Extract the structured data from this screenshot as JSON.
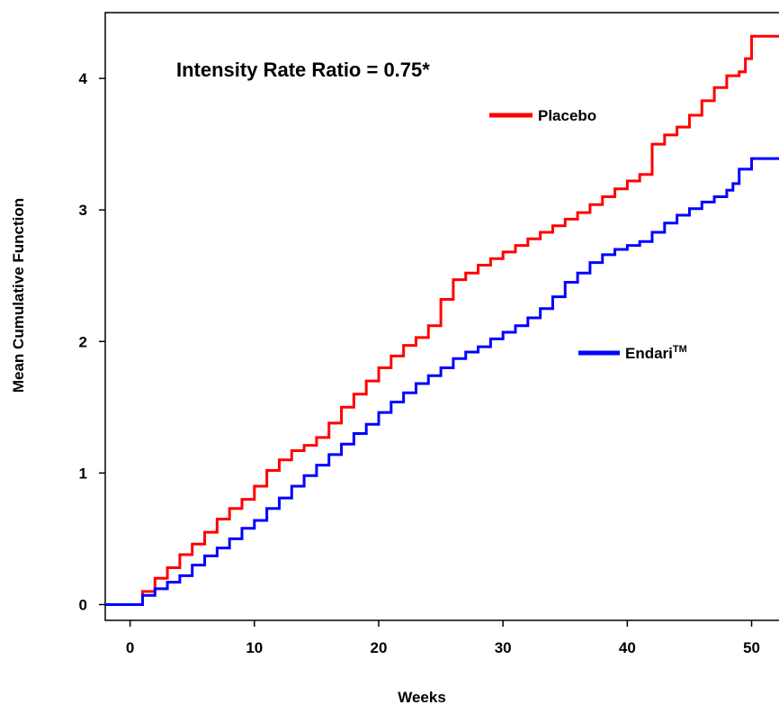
{
  "chart_data": {
    "type": "line",
    "annotation": "Intensity Rate Ratio = 0.75*",
    "xlabel": "Weeks",
    "ylabel": "Mean Cumulative Function",
    "xlim": [
      -2,
      53
    ],
    "ylim": [
      -0.12,
      4.5
    ],
    "x_ticks": [
      0,
      10,
      20,
      30,
      40,
      50
    ],
    "x_tick_labels": [
      "0",
      "10",
      "20",
      "30",
      "40",
      "50"
    ],
    "y_ticks": [
      0,
      1,
      2,
      3,
      4
    ],
    "y_tick_labels": [
      "0",
      "1",
      "2",
      "3",
      "4"
    ],
    "grid": false,
    "series": [
      {
        "name": "Placebo",
        "color": "#ff0000",
        "step": true,
        "points": [
          [
            -2,
            0
          ],
          [
            0,
            0
          ],
          [
            1,
            0.1
          ],
          [
            2,
            0.2
          ],
          [
            3,
            0.28
          ],
          [
            4,
            0.38
          ],
          [
            5,
            0.46
          ],
          [
            6,
            0.55
          ],
          [
            7,
            0.65
          ],
          [
            8,
            0.73
          ],
          [
            9,
            0.8
          ],
          [
            10,
            0.9
          ],
          [
            11,
            1.02
          ],
          [
            12,
            1.1
          ],
          [
            13,
            1.17
          ],
          [
            14,
            1.21
          ],
          [
            15,
            1.27
          ],
          [
            16,
            1.38
          ],
          [
            17,
            1.5
          ],
          [
            18,
            1.6
          ],
          [
            19,
            1.7
          ],
          [
            20,
            1.8
          ],
          [
            21,
            1.89
          ],
          [
            22,
            1.97
          ],
          [
            23,
            2.03
          ],
          [
            24,
            2.12
          ],
          [
            25,
            2.32
          ],
          [
            26,
            2.47
          ],
          [
            27,
            2.52
          ],
          [
            28,
            2.58
          ],
          [
            29,
            2.63
          ],
          [
            30,
            2.68
          ],
          [
            31,
            2.73
          ],
          [
            32,
            2.78
          ],
          [
            33,
            2.83
          ],
          [
            34,
            2.88
          ],
          [
            35,
            2.93
          ],
          [
            36,
            2.98
          ],
          [
            37,
            3.04
          ],
          [
            38,
            3.1
          ],
          [
            39,
            3.16
          ],
          [
            40,
            3.22
          ],
          [
            41,
            3.27
          ],
          [
            42,
            3.5
          ],
          [
            43,
            3.57
          ],
          [
            44,
            3.63
          ],
          [
            45,
            3.72
          ],
          [
            46,
            3.83
          ],
          [
            47,
            3.93
          ],
          [
            48,
            4.02
          ],
          [
            49,
            4.05
          ],
          [
            49.5,
            4.15
          ],
          [
            50,
            4.32
          ],
          [
            53,
            4.32
          ]
        ]
      },
      {
        "name": "Endari™",
        "color": "#0000ff",
        "step": true,
        "points": [
          [
            -2,
            0
          ],
          [
            0,
            0
          ],
          [
            1,
            0.07
          ],
          [
            2,
            0.12
          ],
          [
            3,
            0.17
          ],
          [
            4,
            0.22
          ],
          [
            5,
            0.3
          ],
          [
            6,
            0.37
          ],
          [
            7,
            0.43
          ],
          [
            8,
            0.5
          ],
          [
            9,
            0.58
          ],
          [
            10,
            0.64
          ],
          [
            11,
            0.73
          ],
          [
            12,
            0.81
          ],
          [
            13,
            0.9
          ],
          [
            14,
            0.98
          ],
          [
            15,
            1.06
          ],
          [
            16,
            1.14
          ],
          [
            17,
            1.22
          ],
          [
            18,
            1.3
          ],
          [
            19,
            1.37
          ],
          [
            20,
            1.46
          ],
          [
            21,
            1.54
          ],
          [
            22,
            1.61
          ],
          [
            23,
            1.68
          ],
          [
            24,
            1.74
          ],
          [
            25,
            1.8
          ],
          [
            26,
            1.87
          ],
          [
            27,
            1.92
          ],
          [
            28,
            1.96
          ],
          [
            29,
            2.02
          ],
          [
            30,
            2.07
          ],
          [
            31,
            2.12
          ],
          [
            32,
            2.18
          ],
          [
            33,
            2.25
          ],
          [
            34,
            2.34
          ],
          [
            35,
            2.45
          ],
          [
            36,
            2.52
          ],
          [
            37,
            2.6
          ],
          [
            38,
            2.66
          ],
          [
            39,
            2.7
          ],
          [
            40,
            2.73
          ],
          [
            41,
            2.76
          ],
          [
            42,
            2.83
          ],
          [
            43,
            2.9
          ],
          [
            44,
            2.96
          ],
          [
            45,
            3.01
          ],
          [
            46,
            3.06
          ],
          [
            47,
            3.1
          ],
          [
            48,
            3.15
          ],
          [
            48.5,
            3.2
          ],
          [
            49,
            3.31
          ],
          [
            50,
            3.39
          ],
          [
            53,
            3.39
          ]
        ]
      }
    ],
    "legend": [
      {
        "label": "Placebo",
        "color": "#ff0000"
      },
      {
        "label": "Endari",
        "superscript": "TM",
        "color": "#0000ff"
      }
    ]
  }
}
